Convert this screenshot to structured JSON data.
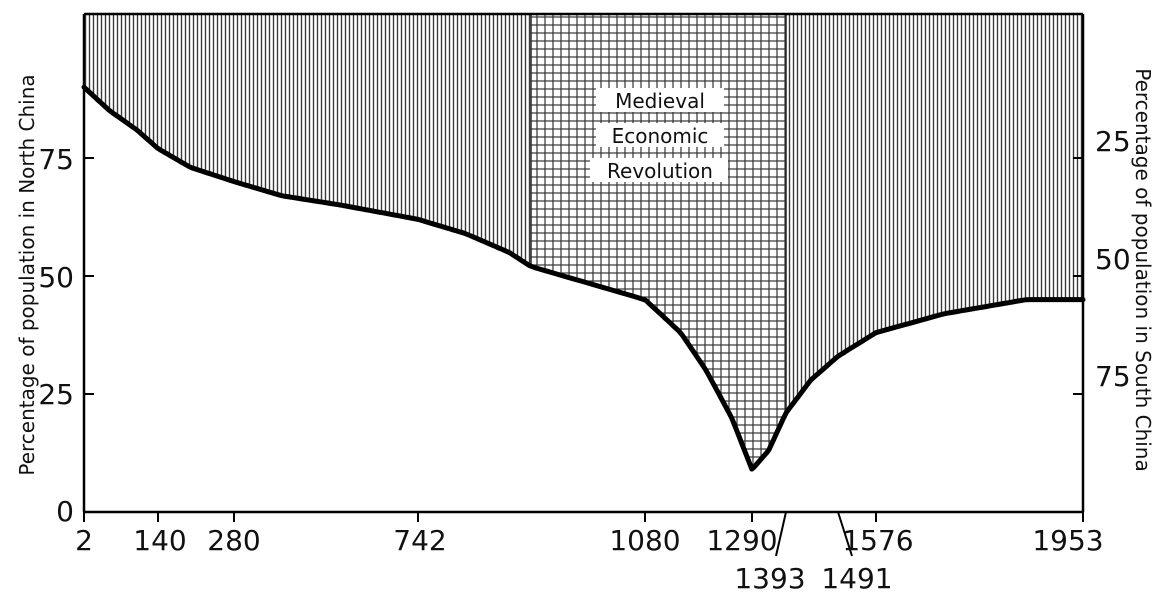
{
  "chart_data": {
    "type": "area",
    "y_left_label": "Percentage of population in North China",
    "y_right_label": "Percentage of population in South China",
    "annotation": [
      "Medieval",
      "Economic",
      "Revolution"
    ],
    "x_tick_labels": [
      "2",
      "140",
      "280",
      "742",
      "1080",
      "1290",
      "1393",
      "1491",
      "1576",
      "1953"
    ],
    "y_left_ticks": [
      0,
      25,
      50,
      75
    ],
    "y_right_ticks": [
      25,
      50,
      75
    ],
    "ylim": [
      0,
      105
    ],
    "series": [
      {
        "x": [
          2,
          50,
          100,
          140,
          200,
          280,
          400,
          550,
          742,
          850,
          950,
          1000,
          1080,
          1150,
          1200,
          1250,
          1290,
          1340,
          1393,
          1440,
          1491,
          1576,
          1700,
          1850,
          1953
        ],
        "y": [
          90,
          85,
          81,
          77,
          73,
          70,
          67,
          65,
          62,
          59,
          55,
          52,
          45,
          38,
          30,
          20,
          9,
          13,
          21,
          28,
          33,
          38,
          42,
          45,
          45
        ]
      }
    ],
    "shaded_regions": [
      {
        "from": 2,
        "to": 1000,
        "pattern": "vertical-lines"
      },
      {
        "from": 1000,
        "to": 1393,
        "pattern": "grid"
      },
      {
        "from": 1393,
        "to": 1953,
        "pattern": "vertical-lines"
      }
    ],
    "grid": false
  }
}
